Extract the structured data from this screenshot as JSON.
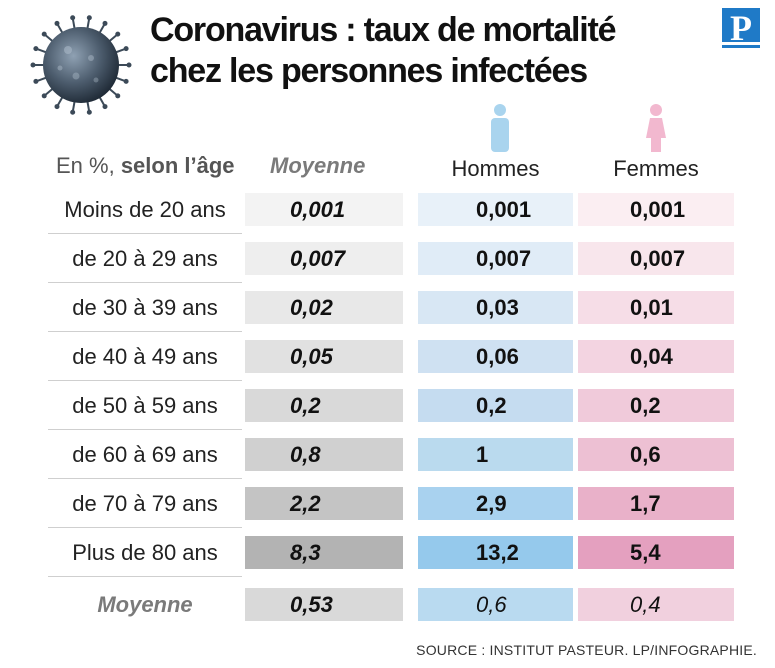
{
  "title_line1": "Coronavirus : taux de mortalité",
  "title_line2": "chez les personnes infectées",
  "logo_letter": "P",
  "header": {
    "unit_prefix": "En %, ",
    "unit_bold": "selon l’âge",
    "average": "Moyenne",
    "men": "Hommes",
    "women": "Femmes"
  },
  "rows": [
    {
      "age": "Moins de 20 ans",
      "avg": "0,001",
      "men": "0,001",
      "women": "0,001"
    },
    {
      "age": "de 20 à 29 ans",
      "avg": "0,007",
      "men": "0,007",
      "women": "0,007"
    },
    {
      "age": "de 30 à 39 ans",
      "avg": "0,02",
      "men": "0,03",
      "women": "0,01"
    },
    {
      "age": "de 40 à 49 ans",
      "avg": "0,05",
      "men": "0,06",
      "women": "0,04"
    },
    {
      "age": "de 50 à 59 ans",
      "avg": "0,2",
      "men": "0,2",
      "women": "0,2"
    },
    {
      "age": "de 60 à 69 ans",
      "avg": "0,8",
      "men": "1",
      "women": "0,6"
    },
    {
      "age": "de 70 à 79 ans",
      "avg": "2,2",
      "men": "2,9",
      "women": "1,7"
    },
    {
      "age": "Plus de 80 ans",
      "avg": "8,3",
      "men": "13,2",
      "women": "5,4"
    }
  ],
  "footer": {
    "label": "Moyenne",
    "avg": "0,53",
    "men": "0,6",
    "women": "0,4"
  },
  "source": "SOURCE : INSTITUT PASTEUR.  LP/INFOGRAPHIE.",
  "colors": {
    "avg_shades": [
      "#f3f3f3",
      "#eeeeee",
      "#e8e8e8",
      "#e1e1e1",
      "#d9d9d9",
      "#d0d0d0",
      "#c4c4c4",
      "#b3b3b3"
    ],
    "men_shades": [
      "#e8f1f9",
      "#e0ecf7",
      "#d8e7f4",
      "#cfe1f2",
      "#c5dcf0",
      "#badaee",
      "#a9d2ef",
      "#95c9ec"
    ],
    "women_shades": [
      "#fbeef2",
      "#f8e6ec",
      "#f6dde7",
      "#f3d4e1",
      "#f0cada",
      "#edc0d3",
      "#e9b1c9",
      "#e4a0bf"
    ],
    "footer_avg": "#d9d9d9",
    "footer_men": "#b9daf0",
    "footer_women": "#f1d0de",
    "men_icon": "#a9d4ee",
    "women_icon": "#f2b8cf"
  },
  "chart_data": {
    "type": "table",
    "columns": [
      "En %, selon l’âge",
      "Moyenne",
      "Hommes",
      "Femmes"
    ],
    "categories": [
      "Moins de 20 ans",
      "de 20 à 29 ans",
      "de 30 à 39 ans",
      "de 40 à 49 ans",
      "de 50 à 59 ans",
      "de 60 à 69 ans",
      "de 70 à 79 ans",
      "Plus de 80 ans"
    ],
    "series": [
      {
        "name": "Moyenne",
        "values": [
          0.001,
          0.007,
          0.02,
          0.05,
          0.2,
          0.8,
          2.2,
          8.3
        ]
      },
      {
        "name": "Hommes",
        "values": [
          0.001,
          0.007,
          0.03,
          0.06,
          0.2,
          1,
          2.9,
          13.2
        ]
      },
      {
        "name": "Femmes",
        "values": [
          0.001,
          0.007,
          0.01,
          0.04,
          0.2,
          0.6,
          1.7,
          5.4
        ]
      }
    ],
    "totals": {
      "Moyenne": 0.53,
      "Hommes": 0.6,
      "Femmes": 0.4
    }
  }
}
